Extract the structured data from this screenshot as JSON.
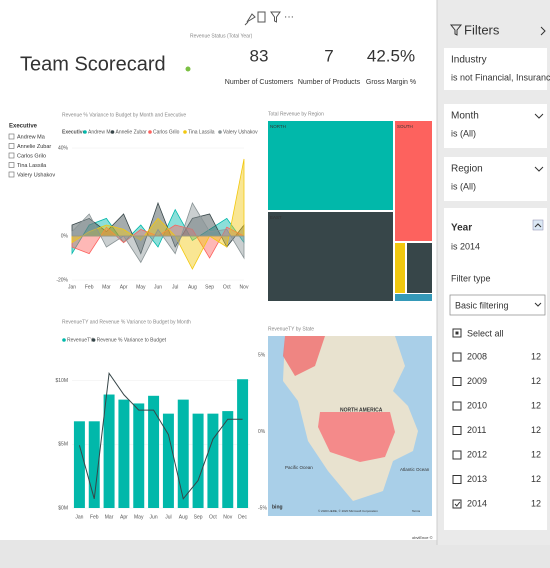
{
  "toolbar": {
    "hint": "Revenue Status (Total Year)"
  },
  "report": {
    "title": "Team Scorecard",
    "kpis": [
      {
        "value": "83",
        "label": "Number of Customers"
      },
      {
        "value": "7",
        "label": "Number of Products"
      },
      {
        "value": "42.5%",
        "label": "Gross Margin %"
      }
    ],
    "slicer": {
      "title": "Executive",
      "items": [
        "Andrew Ma",
        "Annelie Zubar",
        "Carlos Grilo",
        "Tina Lassila",
        "Valery Ushakov"
      ]
    },
    "footer": "obviEnce ©"
  },
  "chart_data": [
    {
      "type": "area",
      "title": "Revenue % Variance to Budget by Month and Executive",
      "legend_title": "Executive",
      "categories": [
        "Jan",
        "Feb",
        "Mar",
        "Apr",
        "May",
        "Jun",
        "Jul",
        "Aug",
        "Sep",
        "Oct",
        "Nov"
      ],
      "ylim": [
        -20,
        40
      ],
      "yticks": [
        {
          "value": 40,
          "label": "40%"
        },
        {
          "value": 0,
          "label": "0%"
        },
        {
          "value": -20,
          "label": "-20%"
        }
      ],
      "series": [
        {
          "name": "Andrew Ma",
          "color": "#01b8aa",
          "values": [
            -8,
            5,
            8,
            -3,
            5,
            -5,
            12,
            -2,
            3,
            8,
            -3
          ]
        },
        {
          "name": "Annelie Zubar",
          "color": "#374649",
          "values": [
            5,
            8,
            2,
            10,
            -8,
            15,
            -5,
            8,
            10,
            -5,
            5
          ]
        },
        {
          "name": "Carlos Grilo",
          "color": "#fd625e",
          "values": [
            -5,
            -8,
            4,
            -3,
            3,
            0,
            5,
            3,
            -10,
            4,
            0
          ]
        },
        {
          "name": "Tina Lassila",
          "color": "#f2c80f",
          "values": [
            -3,
            2,
            5,
            3,
            -2,
            8,
            0,
            -15,
            0,
            -5,
            35
          ]
        },
        {
          "name": "Valery Ushakov",
          "color": "#8a9496",
          "values": [
            2,
            10,
            -5,
            0,
            -12,
            3,
            -8,
            15,
            2,
            3,
            -10
          ]
        }
      ]
    },
    {
      "type": "combo",
      "title": "RevenueTY and Revenue % Variance to Budget by Month",
      "categories": [
        "Jan",
        "Feb",
        "Mar",
        "Apr",
        "May",
        "Jun",
        "Jul",
        "Aug",
        "Sep",
        "Oct",
        "Nov",
        "Dec"
      ],
      "ylim": [
        0,
        12
      ],
      "yticks": [
        {
          "value": 10,
          "label": "$10M"
        },
        {
          "value": 5,
          "label": "$5M"
        },
        {
          "value": 0,
          "label": "$0M"
        }
      ],
      "y2lim": [
        -5,
        5
      ],
      "y2ticks": [
        {
          "value": 5,
          "label": "5%"
        },
        {
          "value": 0,
          "label": "0%"
        },
        {
          "value": -5,
          "label": "-5%"
        }
      ],
      "series": [
        {
          "name": "RevenueTY",
          "color": "#01b8aa",
          "values": [
            6.8,
            6.8,
            8.9,
            8.5,
            8.2,
            8.8,
            7.4,
            8.5,
            7.4,
            7.4,
            7.6,
            10.1
          ]
        },
        {
          "name": "Revenue % Variance to Budget",
          "color": "#374649",
          "axis": "y2",
          "values": [
            -0.9,
            -4.4,
            3.8,
            2.4,
            1.4,
            1.4,
            -0.2,
            -4.4,
            -3.2,
            -0.5,
            0.8,
            0.8
          ]
        }
      ]
    }
  ],
  "treemap": {
    "title": "Total Revenue by Region",
    "labels": [
      "NORTH",
      "SOUTH",
      "EAST"
    ]
  },
  "map": {
    "title": "RevenueTY by State",
    "labels": [
      "NORTH AMERICA",
      "Pacific Ocean",
      "Atlantic Ocean",
      "bing",
      "© 2020 HERE, © 2020 Microsoft Corporation",
      "Terms"
    ]
  },
  "filters": {
    "title": "Filters",
    "cards": [
      {
        "field": "Industry",
        "state": "is not Financial, Insurance,..."
      },
      {
        "field": "Month",
        "state": "is (All)"
      },
      {
        "field": "Region",
        "state": "is (All)"
      }
    ],
    "year": {
      "field": "Year",
      "state": "is 2014",
      "filter_type_label": "Filter type",
      "filter_type": "Basic filtering",
      "select_all": "Select all",
      "options": [
        {
          "label": "2008",
          "count": 12
        },
        {
          "label": "2009",
          "count": 12
        },
        {
          "label": "2010",
          "count": 12
        },
        {
          "label": "2011",
          "count": 12
        },
        {
          "label": "2012",
          "count": 12
        },
        {
          "label": "2013",
          "count": 12
        },
        {
          "label": "2014",
          "count": 12
        }
      ]
    }
  }
}
